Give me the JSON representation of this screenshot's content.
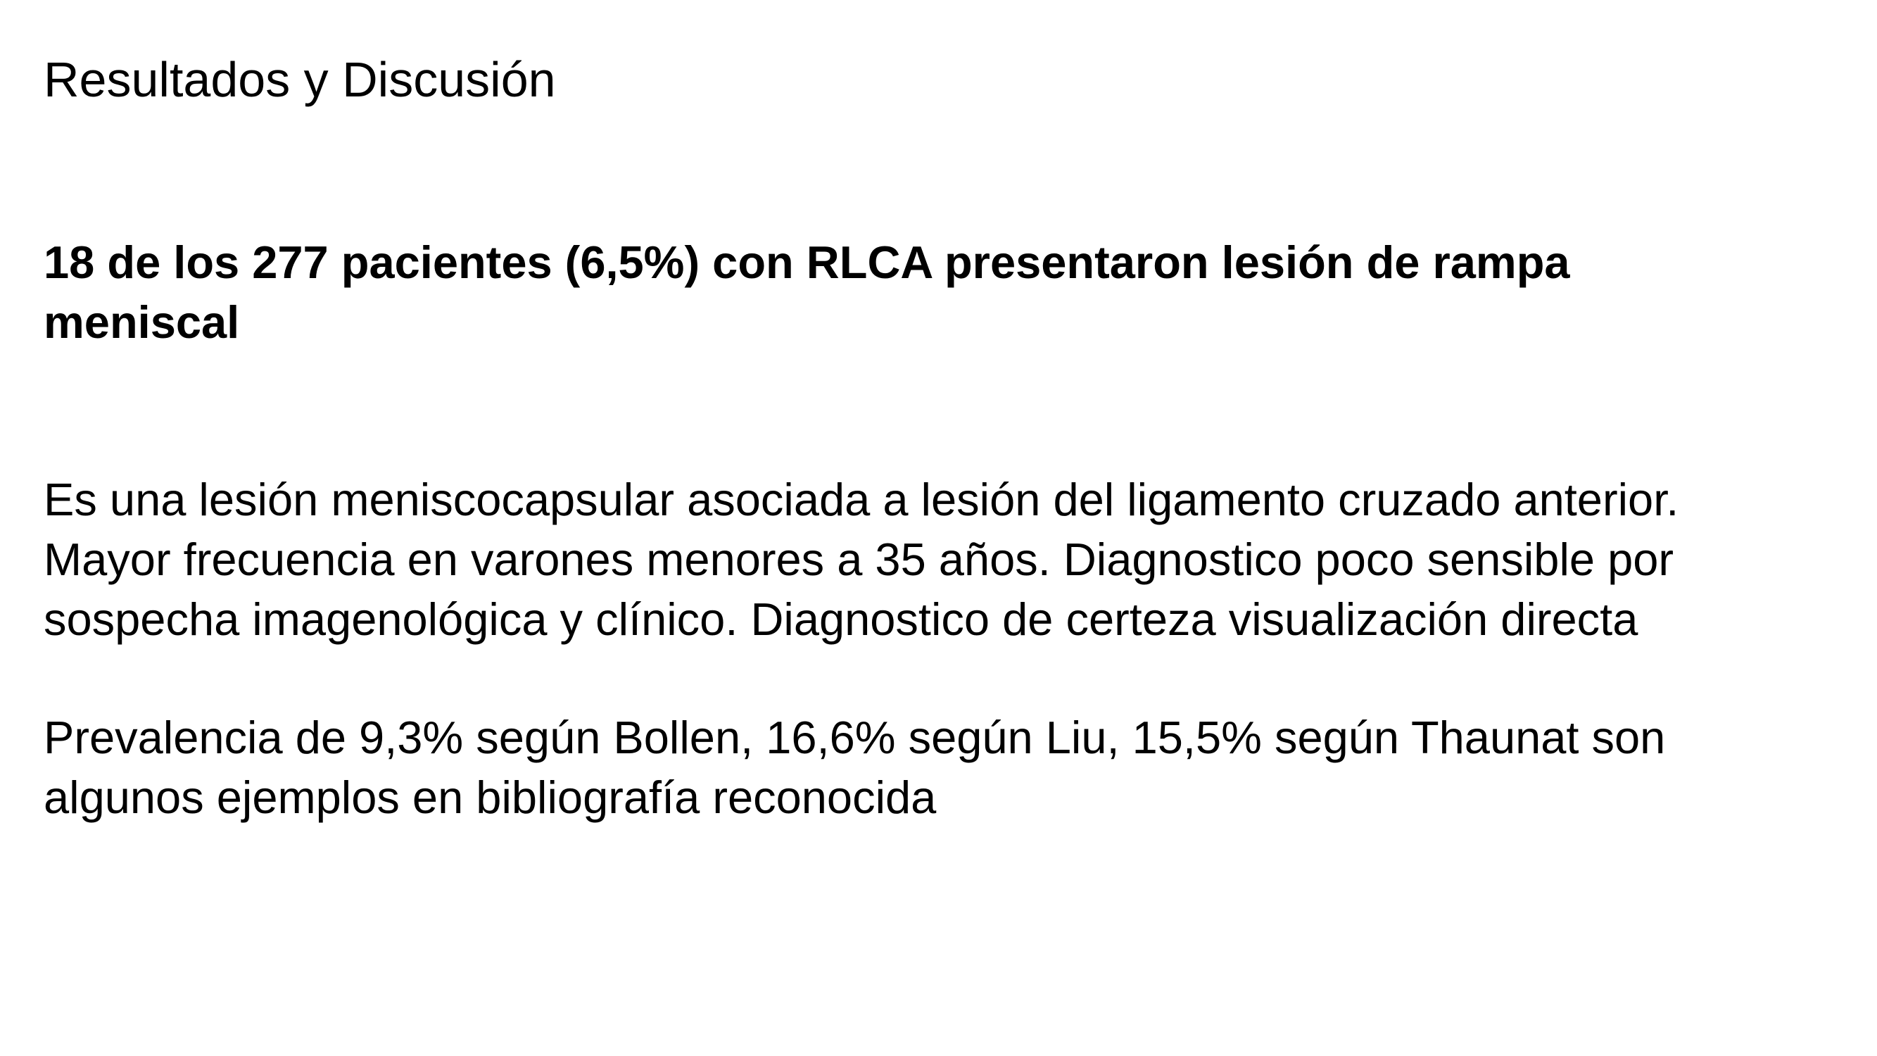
{
  "slide": {
    "title": "Resultados y Discusión",
    "heading_lines": [
      "18 de los 277 pacientes (6,5%) con RLCA presentaron lesión de rampa",
      "meniscal"
    ],
    "paragraph1_lines": [
      "Es una lesión meniscocapsular asociada a lesión del ligamento cruzado anterior.",
      "Mayor frecuencia en varones menores a 35 años. Diagnostico poco sensible por",
      "sospecha imagenológica y clínico. Diagnostico de certeza visualización directa"
    ],
    "paragraph2_lines": [
      "Prevalencia de 9,3% según Bollen, 16,6% según Liu, 15,5% según Thaunat son",
      "algunos ejemplos en bibliografía reconocida"
    ]
  }
}
